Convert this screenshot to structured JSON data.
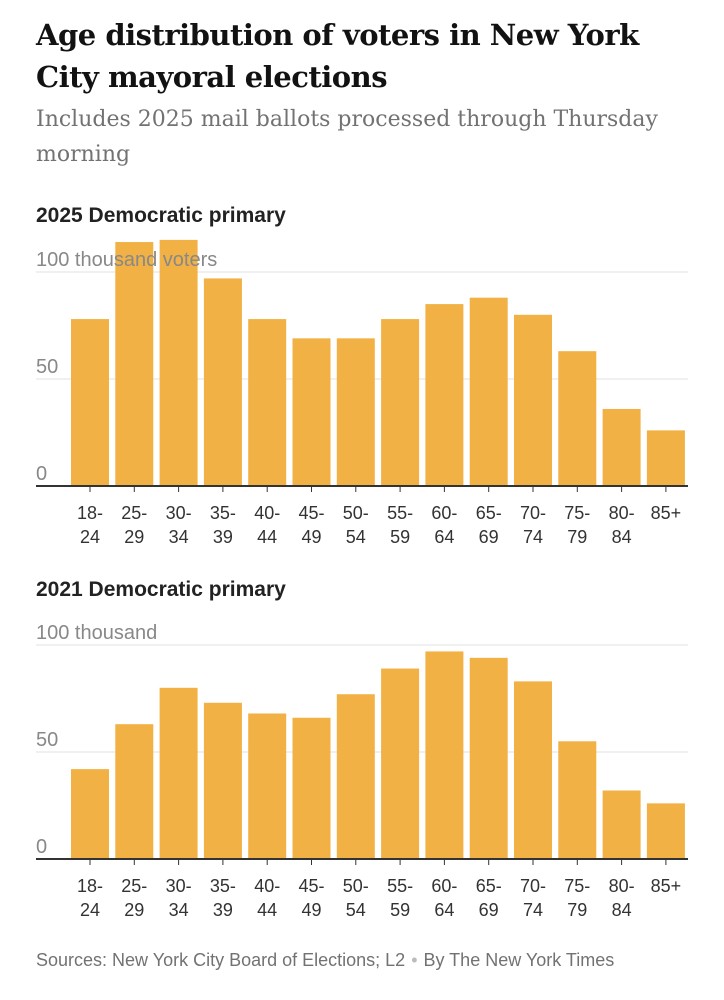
{
  "title": "Age distribution of voters in New York City mayoral elections",
  "subtitle": "Includes 2025 mail ballots processed through Thursday morning",
  "colors": {
    "bar": "#f2b144",
    "grid": "#e2e2e2",
    "axis": "#333333",
    "label": "#888888",
    "tick": "#333333"
  },
  "chart_data": [
    {
      "type": "bar",
      "title": "2025 Democratic primary",
      "ylabel_top": "100 thousand voters",
      "yticks": [
        0,
        50,
        100
      ],
      "ylim": [
        0,
        100
      ],
      "categories": [
        [
          "18-",
          "24"
        ],
        [
          "25-",
          "29"
        ],
        [
          "30-",
          "34"
        ],
        [
          "35-",
          "39"
        ],
        [
          "40-",
          "44"
        ],
        [
          "45-",
          "49"
        ],
        [
          "50-",
          "54"
        ],
        [
          "55-",
          "59"
        ],
        [
          "60-",
          "64"
        ],
        [
          "65-",
          "69"
        ],
        [
          "70-",
          "74"
        ],
        [
          "75-",
          "79"
        ],
        [
          "80-",
          "84"
        ],
        [
          "85+",
          ""
        ]
      ],
      "values": [
        78,
        114,
        115,
        97,
        78,
        69,
        69,
        78,
        85,
        88,
        80,
        63,
        36,
        26
      ]
    },
    {
      "type": "bar",
      "title": "2021 Democratic primary",
      "ylabel_top": "100 thousand",
      "yticks": [
        0,
        50,
        100
      ],
      "ylim": [
        0,
        100
      ],
      "categories": [
        [
          "18-",
          "24"
        ],
        [
          "25-",
          "29"
        ],
        [
          "30-",
          "34"
        ],
        [
          "35-",
          "39"
        ],
        [
          "40-",
          "44"
        ],
        [
          "45-",
          "49"
        ],
        [
          "50-",
          "54"
        ],
        [
          "55-",
          "59"
        ],
        [
          "60-",
          "64"
        ],
        [
          "65-",
          "69"
        ],
        [
          "70-",
          "74"
        ],
        [
          "75-",
          "79"
        ],
        [
          "80-",
          "84"
        ],
        [
          "85+",
          ""
        ]
      ],
      "values": [
        42,
        63,
        80,
        73,
        68,
        66,
        77,
        89,
        97,
        94,
        83,
        55,
        32,
        26
      ]
    }
  ],
  "footer": {
    "sources": "Sources: New York City Board of Elections; L2",
    "separator": "•",
    "byline": "By The New York Times"
  }
}
